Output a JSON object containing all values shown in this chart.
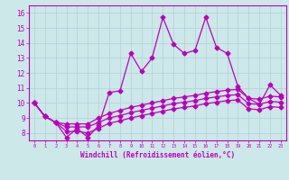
{
  "xlabel": "Windchill (Refroidissement éolien,°C)",
  "x_values": [
    0,
    1,
    2,
    3,
    4,
    5,
    6,
    7,
    8,
    9,
    10,
    11,
    12,
    13,
    14,
    15,
    16,
    17,
    18,
    19,
    20,
    21,
    22,
    23
  ],
  "line1": [
    10.0,
    9.1,
    8.7,
    7.7,
    8.3,
    7.7,
    8.5,
    10.7,
    10.8,
    13.3,
    12.1,
    13.0,
    15.7,
    13.9,
    13.3,
    13.5,
    15.7,
    13.7,
    13.3,
    11.1,
    10.3,
    9.9,
    11.2,
    10.5
  ],
  "line2": [
    10.0,
    9.1,
    8.7,
    8.6,
    8.6,
    8.6,
    9.0,
    9.3,
    9.5,
    9.7,
    9.85,
    10.0,
    10.15,
    10.3,
    10.4,
    10.5,
    10.65,
    10.75,
    10.85,
    10.9,
    10.3,
    10.25,
    10.45,
    10.4
  ],
  "line3": [
    10.0,
    9.1,
    8.7,
    8.4,
    8.4,
    8.4,
    8.7,
    9.0,
    9.15,
    9.35,
    9.5,
    9.65,
    9.8,
    9.95,
    10.05,
    10.15,
    10.3,
    10.4,
    10.5,
    10.55,
    9.95,
    9.9,
    10.1,
    10.05
  ],
  "line4": [
    10.0,
    9.1,
    8.7,
    8.1,
    8.1,
    8.0,
    8.3,
    8.65,
    8.8,
    9.0,
    9.15,
    9.3,
    9.45,
    9.6,
    9.7,
    9.8,
    9.95,
    10.05,
    10.15,
    10.2,
    9.6,
    9.55,
    9.75,
    9.7
  ],
  "line_color": "#bb00bb",
  "bg_color": "#cce8e8",
  "grid_color": "#b0d0d8",
  "ylim": [
    7.5,
    16.5
  ],
  "xlim": [
    -0.5,
    23.5
  ],
  "yticks": [
    8,
    9,
    10,
    11,
    12,
    13,
    14,
    15,
    16
  ],
  "xticks": [
    0,
    1,
    2,
    3,
    4,
    5,
    6,
    7,
    8,
    9,
    10,
    11,
    12,
    13,
    14,
    15,
    16,
    17,
    18,
    19,
    20,
    21,
    22,
    23
  ]
}
